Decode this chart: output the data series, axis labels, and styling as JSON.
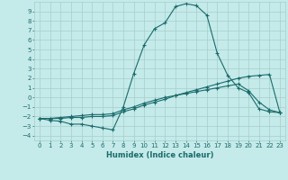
{
  "xlabel": "Humidex (Indice chaleur)",
  "background_color": "#c5eaea",
  "grid_color": "#a8cccc",
  "line_color": "#1a6b6b",
  "xlim": [
    -0.5,
    23.5
  ],
  "ylim": [
    -4.5,
    10.0
  ],
  "xticks": [
    0,
    1,
    2,
    3,
    4,
    5,
    6,
    7,
    8,
    9,
    10,
    11,
    12,
    13,
    14,
    15,
    16,
    17,
    18,
    19,
    20,
    21,
    22,
    23
  ],
  "yticks": [
    -4,
    -3,
    -2,
    -1,
    0,
    1,
    2,
    3,
    4,
    5,
    6,
    7,
    8,
    9
  ],
  "series": [
    {
      "x": [
        0,
        1,
        2,
        3,
        4,
        5,
        6,
        7,
        8,
        9,
        10,
        11,
        12,
        13,
        14,
        15,
        16,
        17,
        18,
        19,
        20,
        21,
        22,
        23
      ],
      "y": [
        -2.2,
        -2.4,
        -2.5,
        -2.8,
        -2.8,
        -3.0,
        -3.2,
        -3.4,
        -1.0,
        2.5,
        5.5,
        7.2,
        7.8,
        9.5,
        9.8,
        9.6,
        8.6,
        4.6,
        2.3,
        1.0,
        0.5,
        -1.2,
        -1.5,
        -1.6
      ]
    },
    {
      "x": [
        0,
        1,
        2,
        3,
        4,
        5,
        6,
        7,
        8,
        9,
        10,
        11,
        12,
        13,
        14,
        15,
        16,
        17,
        18,
        19,
        20,
        21,
        22,
        23
      ],
      "y": [
        -2.2,
        -2.2,
        -2.2,
        -2.1,
        -2.1,
        -2.0,
        -2.0,
        -1.9,
        -1.5,
        -1.2,
        -0.8,
        -0.5,
        -0.2,
        0.2,
        0.5,
        0.8,
        1.1,
        1.4,
        1.7,
        2.0,
        2.2,
        2.3,
        2.4,
        -1.6
      ]
    },
    {
      "x": [
        0,
        1,
        2,
        3,
        4,
        5,
        6,
        7,
        8,
        9,
        10,
        11,
        12,
        13,
        14,
        15,
        16,
        17,
        18,
        19,
        20,
        21,
        22,
        23
      ],
      "y": [
        -2.2,
        -2.2,
        -2.1,
        -2.0,
        -1.9,
        -1.8,
        -1.8,
        -1.7,
        -1.3,
        -1.0,
        -0.6,
        -0.3,
        0.0,
        0.2,
        0.4,
        0.6,
        0.8,
        1.0,
        1.2,
        1.4,
        0.7,
        -0.5,
        -1.3,
        -1.6
      ]
    }
  ]
}
